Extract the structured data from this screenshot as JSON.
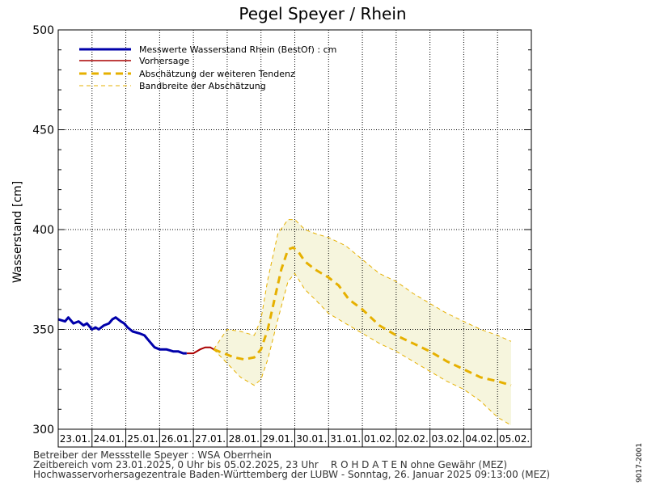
{
  "chart_data": {
    "type": "line",
    "title": "Pegel Speyer / Rhein",
    "ylabel": "Wasserstand [cm]",
    "ylim": [
      300,
      500
    ],
    "y_ticks": [
      300,
      350,
      400,
      450,
      500
    ],
    "x_start": "23.01.2025 00:00",
    "x_end": "05.02.2025 23:00",
    "date_labels": [
      "23.01.",
      "24.01.",
      "25.01.",
      "26.01.",
      "27.01.",
      "28.01.",
      "29.01.",
      "30.01.",
      "31.01.",
      "01.02.",
      "02.02.",
      "03.02.",
      "04.02.",
      "05.02."
    ],
    "grid": true,
    "legend_position": "top-left",
    "series": [
      {
        "name": "Messwerte Wasserstand Rhein (BestOf) : cm",
        "color": "#0000aa",
        "points": [
          [
            0.0,
            355
          ],
          [
            0.2,
            354
          ],
          [
            0.3,
            356
          ],
          [
            0.45,
            353
          ],
          [
            0.6,
            354
          ],
          [
            0.75,
            352
          ],
          [
            0.85,
            353
          ],
          [
            1.0,
            350
          ],
          [
            1.1,
            351
          ],
          [
            1.2,
            350
          ],
          [
            1.35,
            352
          ],
          [
            1.5,
            353
          ],
          [
            1.6,
            355
          ],
          [
            1.7,
            356
          ],
          [
            1.85,
            354
          ],
          [
            1.95,
            353
          ],
          [
            2.05,
            351
          ],
          [
            2.2,
            349
          ],
          [
            2.4,
            348
          ],
          [
            2.55,
            347
          ],
          [
            2.7,
            344
          ],
          [
            2.85,
            341
          ],
          [
            3.0,
            340
          ],
          [
            3.2,
            340
          ],
          [
            3.4,
            339
          ],
          [
            3.55,
            339
          ],
          [
            3.7,
            338
          ],
          [
            3.8,
            338
          ]
        ]
      },
      {
        "name": "Vorhersage",
        "color": "#aa0000",
        "points": [
          [
            3.8,
            338
          ],
          [
            4.0,
            338
          ],
          [
            4.2,
            340
          ],
          [
            4.35,
            341
          ],
          [
            4.5,
            341
          ],
          [
            4.6,
            340
          ]
        ]
      },
      {
        "name": "Abschätzung der weiteren Tendenz",
        "color": "#e6b000",
        "points": [
          [
            4.6,
            340
          ],
          [
            4.9,
            338
          ],
          [
            5.2,
            336
          ],
          [
            5.5,
            335
          ],
          [
            5.8,
            336
          ],
          [
            6.0,
            340
          ],
          [
            6.2,
            350
          ],
          [
            6.4,
            365
          ],
          [
            6.6,
            380
          ],
          [
            6.8,
            390
          ],
          [
            6.95,
            391
          ],
          [
            7.1,
            389
          ],
          [
            7.3,
            384
          ],
          [
            7.6,
            380
          ],
          [
            8.0,
            376
          ],
          [
            8.3,
            372
          ],
          [
            8.6,
            365
          ],
          [
            9.0,
            360
          ],
          [
            9.5,
            352
          ],
          [
            10.0,
            347
          ],
          [
            10.5,
            343
          ],
          [
            11.0,
            339
          ],
          [
            11.5,
            334
          ],
          [
            12.0,
            330
          ],
          [
            12.5,
            326
          ],
          [
            13.0,
            324
          ],
          [
            13.4,
            322
          ]
        ]
      },
      {
        "name": "Bandbreite der Abschätzung",
        "color": "#e6b000",
        "upper": [
          [
            4.6,
            340
          ],
          [
            5.0,
            350
          ],
          [
            5.4,
            349
          ],
          [
            5.8,
            347
          ],
          [
            6.0,
            355
          ],
          [
            6.2,
            375
          ],
          [
            6.5,
            398
          ],
          [
            6.8,
            405
          ],
          [
            7.0,
            405
          ],
          [
            7.3,
            400
          ],
          [
            7.6,
            398
          ],
          [
            8.0,
            396
          ],
          [
            8.5,
            392
          ],
          [
            9.0,
            385
          ],
          [
            9.5,
            378
          ],
          [
            10.0,
            374
          ],
          [
            10.5,
            368
          ],
          [
            11.0,
            363
          ],
          [
            11.5,
            358
          ],
          [
            12.0,
            354
          ],
          [
            12.5,
            350
          ],
          [
            13.0,
            347
          ],
          [
            13.4,
            344
          ]
        ],
        "lower": [
          [
            4.6,
            340
          ],
          [
            5.0,
            333
          ],
          [
            5.4,
            326
          ],
          [
            5.8,
            322
          ],
          [
            6.0,
            325
          ],
          [
            6.2,
            335
          ],
          [
            6.5,
            355
          ],
          [
            6.8,
            374
          ],
          [
            7.0,
            378
          ],
          [
            7.3,
            370
          ],
          [
            7.6,
            365
          ],
          [
            8.0,
            358
          ],
          [
            8.5,
            353
          ],
          [
            9.0,
            348
          ],
          [
            9.5,
            343
          ],
          [
            10.0,
            339
          ],
          [
            10.5,
            334
          ],
          [
            11.0,
            329
          ],
          [
            11.5,
            324
          ],
          [
            12.0,
            320
          ],
          [
            12.5,
            314
          ],
          [
            13.0,
            306
          ],
          [
            13.4,
            302
          ]
        ]
      }
    ]
  },
  "footer": {
    "line1": "Betreiber der Messstelle Speyer : WSA Oberrhein",
    "line2": "Zeitbereich vom 23.01.2025, 0 Uhr bis 05.02.2025, 23 Uhr    R O H D A T E N ohne Gewähr (MEZ)",
    "line3": "Hochwasservorhersagezentrale Baden-Württemberg der LUBW - Sonntag, 26. Januar 2025 09:13:00 (MEZ)"
  },
  "side_code": "9017-2001",
  "colors": {
    "band_fill": "#f6f5dd",
    "grid": "#000000"
  }
}
